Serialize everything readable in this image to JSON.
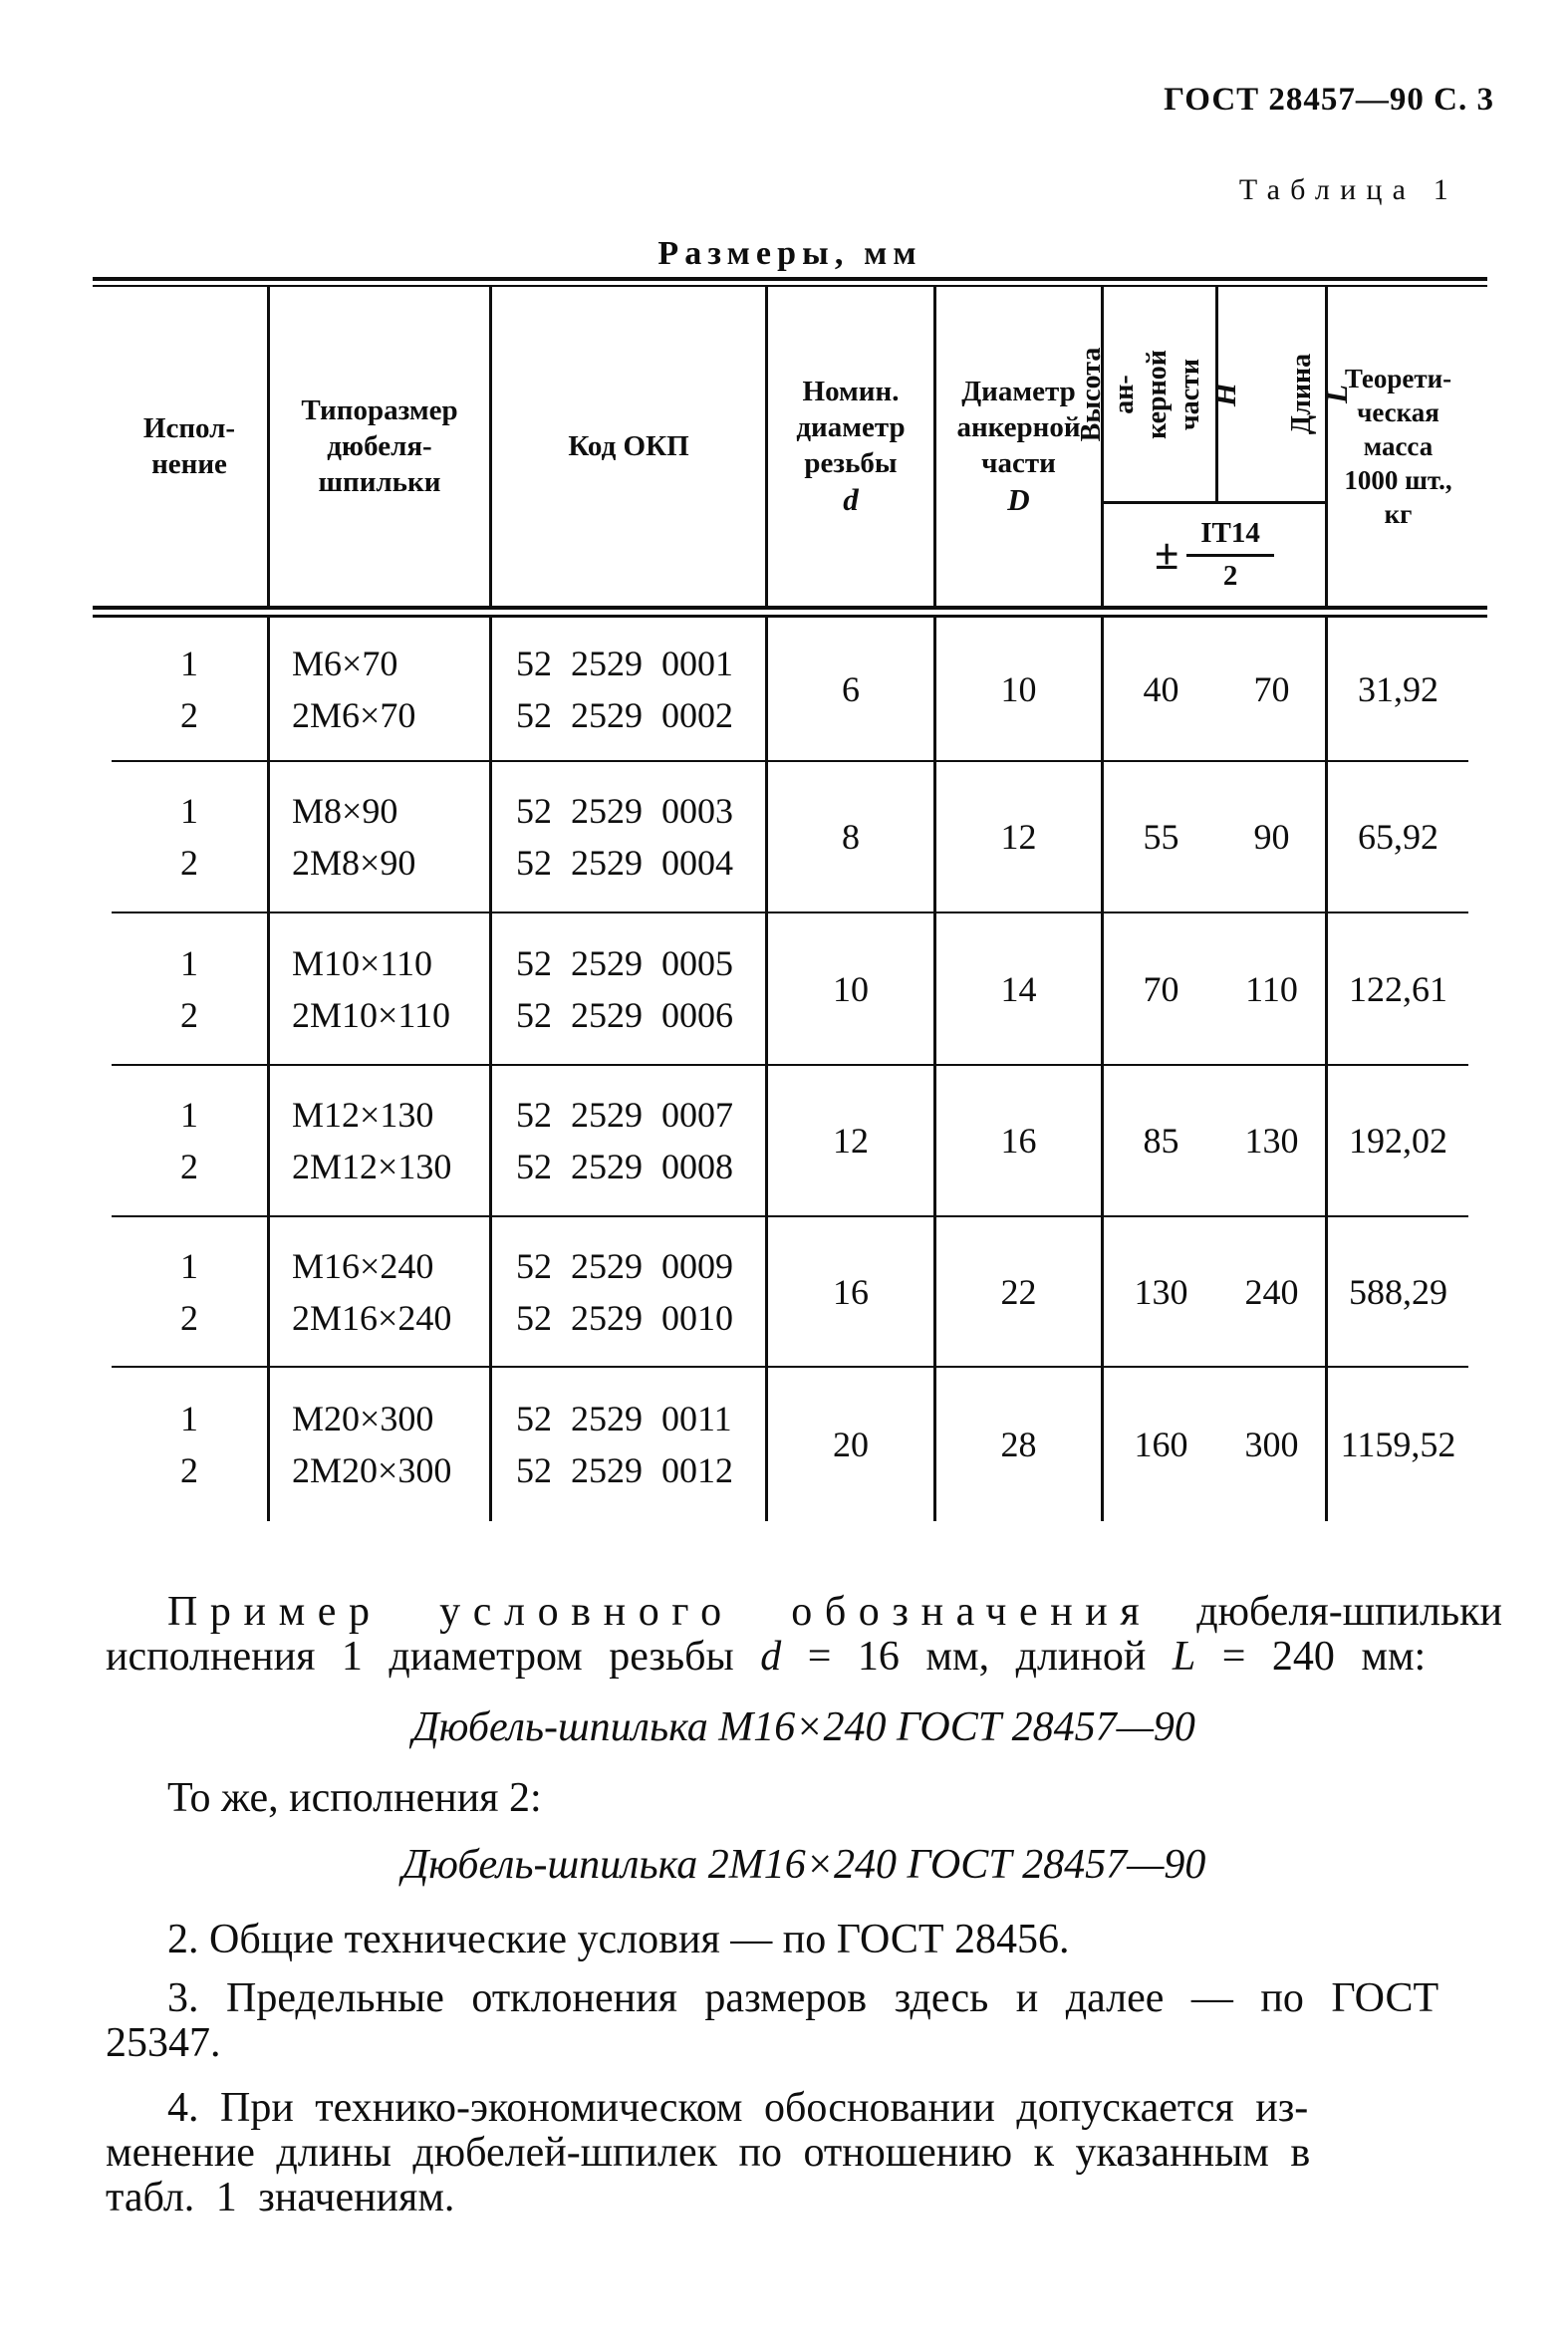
{
  "colors": {
    "ink": "#0e0e0e",
    "paper": "#ffffff"
  },
  "page": {
    "doc_ref": "ГОСТ 28457—90 С. 3",
    "table_caption": "Таблица 1",
    "table_title": "Размеры, мм"
  },
  "table": {
    "header": {
      "ispolnenie": "Испол-\nнение",
      "tiporazmer": "Типоразмер\nдюбеля-\nшпильки",
      "kod_okp": "Код ОКП",
      "nominal_d": "Номин.\nдиаметр\nрезьбы",
      "nominal_d_var": "d",
      "anchor_D": "Диаметр\nанкерной\nчасти",
      "anchor_D_var": "D",
      "height_H": "Высота ан-\nкерной части",
      "height_H_var": "Н",
      "length_L": "Длина",
      "length_L_var": "L",
      "tol_pm": "±",
      "tol_num": "IT14",
      "tol_den": "2",
      "mass": "Теорети-\nческая\nмасса\n1000 шт.,\nкг"
    },
    "rows": [
      {
        "isp": "1\n2",
        "size": "М6×70\n2М6×70",
        "okp": "52 2529 0001\n52 2529 0002",
        "d": "6",
        "D": "10",
        "H": "40",
        "L": "70",
        "mass": "31,92"
      },
      {
        "isp": "1\n2",
        "size": "М8×90\n2М8×90",
        "okp": "52 2529 0003\n52 2529 0004",
        "d": "8",
        "D": "12",
        "H": "55",
        "L": "90",
        "mass": "65,92"
      },
      {
        "isp": "1\n2",
        "size": "М10×110\n2М10×110",
        "okp": "52 2529 0005\n52 2529 0006",
        "d": "10",
        "D": "14",
        "H": "70",
        "L": "110",
        "mass": "122,61"
      },
      {
        "isp": "1\n2",
        "size": "М12×130\n2М12×130",
        "okp": "52 2529 0007\n52 2529 0008",
        "d": "12",
        "D": "16",
        "H": "85",
        "L": "130",
        "mass": "192,02"
      },
      {
        "isp": "1\n2",
        "size": "М16×240\n2М16×240",
        "okp": "52 2529 0009\n52 2529 0010",
        "d": "16",
        "D": "22",
        "H": "130",
        "L": "240",
        "mass": "588,29"
      },
      {
        "isp": "1\n2",
        "size": "М20×300\n2М20×300",
        "okp": "52 2529 0011\n52 2529 0012",
        "d": "20",
        "D": "28",
        "H": "160",
        "L": "300",
        "mass": "1159,52"
      }
    ]
  },
  "text": {
    "p1_spaced": "Пример условного обозначения",
    "p1_a": " дюбеля-шпильки исполнения 1 диаметром резьбы ",
    "p1_d": "d",
    "p1_b": " = 16 мм, длиной ",
    "p1_L": "L",
    "p1_c": " = 240 мм:",
    "example1": "Дюбель-шпилька М16×240 ГОСТ 28457—90",
    "p2": "То же, исполнения 2:",
    "example2": "Дюбель-шпилька 2М16×240 ГОСТ 28457—90",
    "p3": "2. Общие технические условия — по ГОСТ 28456.",
    "p4": "3. Предельные отклонения размеров здесь и далее — по ГОСТ\n25347.",
    "p5": "4. При технико-экономическом обосновании допускается из-\nменение длины дюбелей-шпилек по отношению к указанным в\nтабл. 1 значениям."
  }
}
